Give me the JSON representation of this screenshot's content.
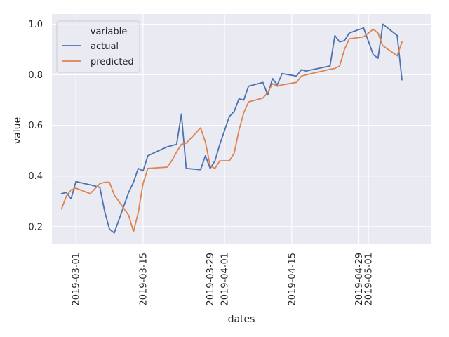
{
  "chart_data": {
    "type": "line",
    "xlabel": "dates",
    "ylabel": "value",
    "xlim": [
      "2019-02-24",
      "2019-05-14"
    ],
    "ylim": [
      0.13,
      1.04
    ],
    "grid": true,
    "legend_position": "top-left",
    "legend_title": "variable",
    "x_ticks": [
      "2019-03-01",
      "2019-03-15",
      "2019-03-29",
      "2019-04-01",
      "2019-04-15",
      "2019-04-29",
      "2019-05-01"
    ],
    "y_ticks": [
      {
        "value": 0.2,
        "label": "0.2"
      },
      {
        "value": 0.4,
        "label": "0.4"
      },
      {
        "value": 0.6,
        "label": "0.6"
      },
      {
        "value": 0.8,
        "label": "0.8"
      },
      {
        "value": 1.0,
        "label": "1.0"
      }
    ],
    "series": [
      {
        "name": "actual",
        "color": "#4c72b0",
        "points": [
          [
            "2019-02-26",
            0.33
          ],
          [
            "2019-02-27",
            0.335
          ],
          [
            "2019-02-28",
            0.31
          ],
          [
            "2019-03-01",
            0.378
          ],
          [
            "2019-03-04",
            0.365
          ],
          [
            "2019-03-06",
            0.355
          ],
          [
            "2019-03-07",
            0.26
          ],
          [
            "2019-03-08",
            0.19
          ],
          [
            "2019-03-09",
            0.175
          ],
          [
            "2019-03-12",
            0.335
          ],
          [
            "2019-03-13",
            0.375
          ],
          [
            "2019-03-14",
            0.43
          ],
          [
            "2019-03-15",
            0.42
          ],
          [
            "2019-03-16",
            0.48
          ],
          [
            "2019-03-20",
            0.515
          ],
          [
            "2019-03-21",
            0.52
          ],
          [
            "2019-03-22",
            0.525
          ],
          [
            "2019-03-23",
            0.645
          ],
          [
            "2019-03-24",
            0.43
          ],
          [
            "2019-03-27",
            0.425
          ],
          [
            "2019-03-28",
            0.48
          ],
          [
            "2019-03-29",
            0.43
          ],
          [
            "2019-03-30",
            0.46
          ],
          [
            "2019-03-31",
            0.525
          ],
          [
            "2019-04-01",
            0.58
          ],
          [
            "2019-04-02",
            0.635
          ],
          [
            "2019-04-03",
            0.655
          ],
          [
            "2019-04-04",
            0.705
          ],
          [
            "2019-04-05",
            0.7
          ],
          [
            "2019-04-06",
            0.755
          ],
          [
            "2019-04-09",
            0.77
          ],
          [
            "2019-04-10",
            0.72
          ],
          [
            "2019-04-11",
            0.785
          ],
          [
            "2019-04-12",
            0.76
          ],
          [
            "2019-04-13",
            0.805
          ],
          [
            "2019-04-16",
            0.795
          ],
          [
            "2019-04-17",
            0.82
          ],
          [
            "2019-04-18",
            0.815
          ],
          [
            "2019-04-23",
            0.835
          ],
          [
            "2019-04-24",
            0.955
          ],
          [
            "2019-04-25",
            0.93
          ],
          [
            "2019-04-26",
            0.935
          ],
          [
            "2019-04-27",
            0.965
          ],
          [
            "2019-04-30",
            0.985
          ],
          [
            "2019-05-02",
            0.88
          ],
          [
            "2019-05-03",
            0.865
          ],
          [
            "2019-05-04",
            1.0
          ],
          [
            "2019-05-07",
            0.955
          ],
          [
            "2019-05-08",
            0.78
          ]
        ]
      },
      {
        "name": "predicted",
        "color": "#dd8452",
        "points": [
          [
            "2019-02-26",
            0.27
          ],
          [
            "2019-02-27",
            0.32
          ],
          [
            "2019-02-28",
            0.345
          ],
          [
            "2019-03-01",
            0.352
          ],
          [
            "2019-03-04",
            0.33
          ],
          [
            "2019-03-06",
            0.37
          ],
          [
            "2019-03-07",
            0.375
          ],
          [
            "2019-03-08",
            0.375
          ],
          [
            "2019-03-09",
            0.325
          ],
          [
            "2019-03-12",
            0.245
          ],
          [
            "2019-03-13",
            0.18
          ],
          [
            "2019-03-14",
            0.255
          ],
          [
            "2019-03-15",
            0.37
          ],
          [
            "2019-03-16",
            0.43
          ],
          [
            "2019-03-20",
            0.435
          ],
          [
            "2019-03-21",
            0.46
          ],
          [
            "2019-03-22",
            0.495
          ],
          [
            "2019-03-23",
            0.525
          ],
          [
            "2019-03-24",
            0.53
          ],
          [
            "2019-03-27",
            0.59
          ],
          [
            "2019-03-28",
            0.535
          ],
          [
            "2019-03-29",
            0.44
          ],
          [
            "2019-03-30",
            0.43
          ],
          [
            "2019-03-31",
            0.46
          ],
          [
            "2019-04-01",
            0.46
          ],
          [
            "2019-04-02",
            0.46
          ],
          [
            "2019-04-03",
            0.49
          ],
          [
            "2019-04-04",
            0.58
          ],
          [
            "2019-04-05",
            0.65
          ],
          [
            "2019-04-06",
            0.693
          ],
          [
            "2019-04-09",
            0.708
          ],
          [
            "2019-04-10",
            0.73
          ],
          [
            "2019-04-11",
            0.765
          ],
          [
            "2019-04-12",
            0.755
          ],
          [
            "2019-04-13",
            0.76
          ],
          [
            "2019-04-16",
            0.77
          ],
          [
            "2019-04-17",
            0.795
          ],
          [
            "2019-04-18",
            0.8
          ],
          [
            "2019-04-23",
            0.822
          ],
          [
            "2019-04-24",
            0.825
          ],
          [
            "2019-04-25",
            0.835
          ],
          [
            "2019-04-26",
            0.9
          ],
          [
            "2019-04-27",
            0.942
          ],
          [
            "2019-04-30",
            0.95
          ],
          [
            "2019-05-02",
            0.98
          ],
          [
            "2019-05-03",
            0.965
          ],
          [
            "2019-05-04",
            0.915
          ],
          [
            "2019-05-07",
            0.875
          ],
          [
            "2019-05-08",
            0.93
          ]
        ]
      }
    ]
  }
}
